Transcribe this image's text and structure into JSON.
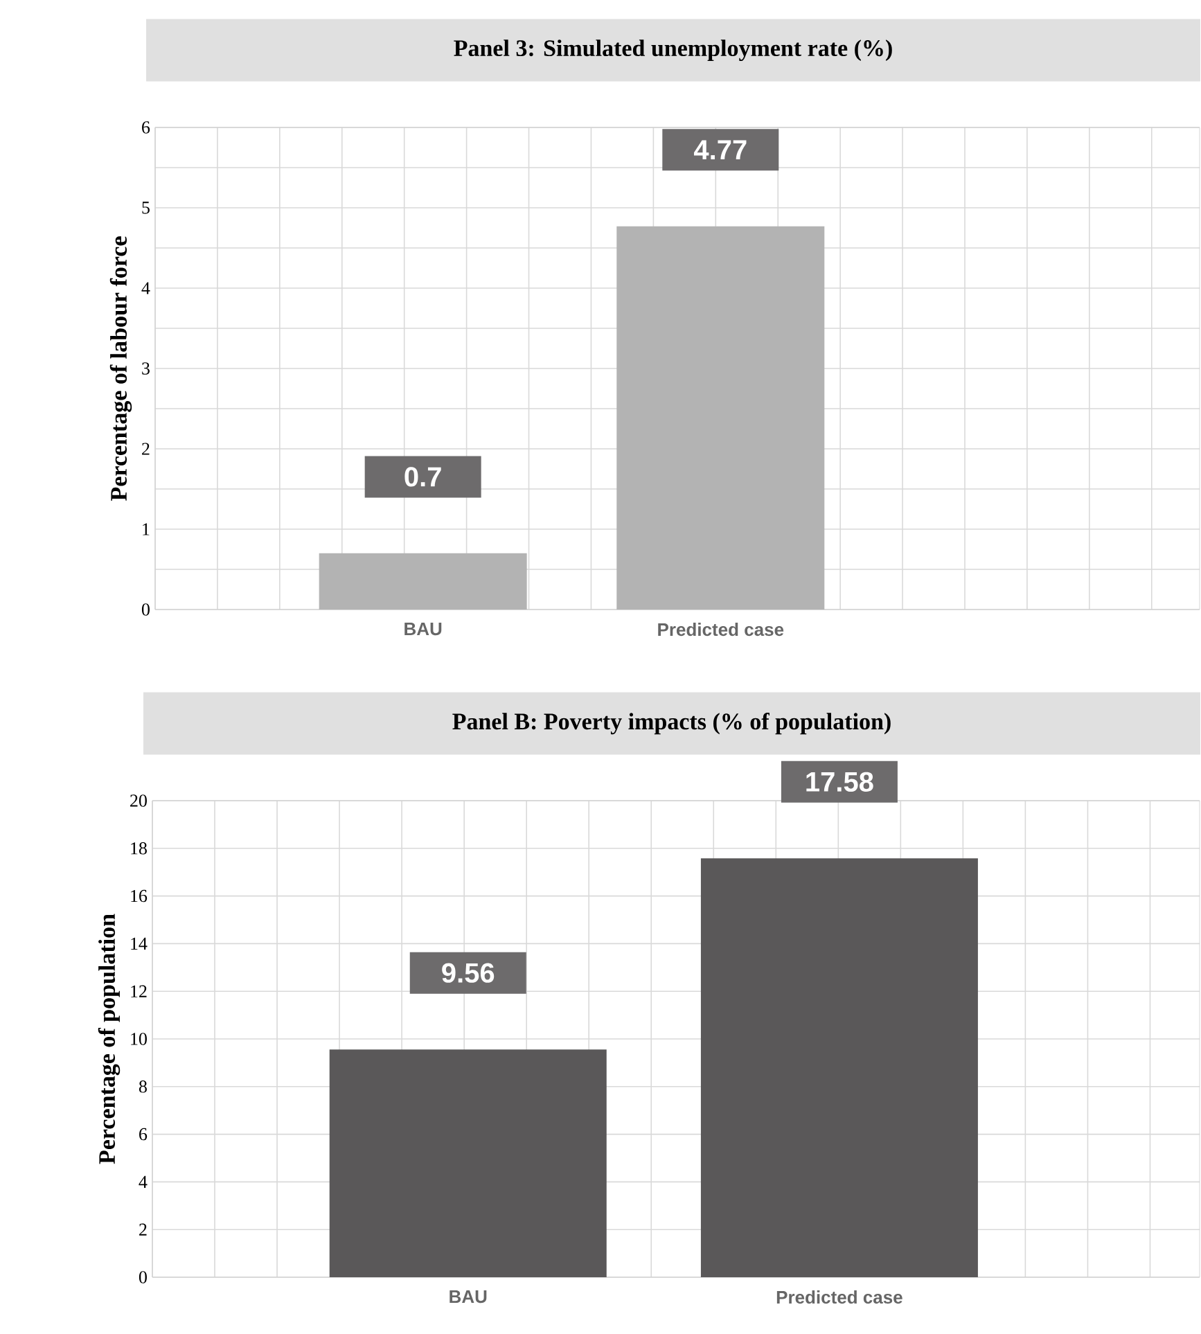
{
  "chart_data": [
    {
      "type": "bar",
      "title": "Panel 3: Simulated unemployment rate (%)",
      "ylabel": "Percentage of labour force",
      "categories": [
        "BAU",
        "Predicted case"
      ],
      "values": [
        0.7,
        4.77
      ],
      "color": "#b3b3b3",
      "ylim": [
        0,
        6
      ],
      "yticks": [
        0,
        1,
        2,
        3,
        4,
        5,
        6
      ],
      "grid": true,
      "data_labels": true
    },
    {
      "type": "bar",
      "title": "Panel B: Poverty impacts (% of population)",
      "ylabel": "Percentage of population",
      "categories": [
        "BAU",
        "Predicted case"
      ],
      "values": [
        9.56,
        17.58
      ],
      "color": "#5a5859",
      "ylim": [
        0,
        20
      ],
      "yticks": [
        0,
        2,
        4,
        6,
        8,
        10,
        12,
        14,
        16,
        18,
        20
      ],
      "grid": true,
      "data_labels": true
    }
  ]
}
